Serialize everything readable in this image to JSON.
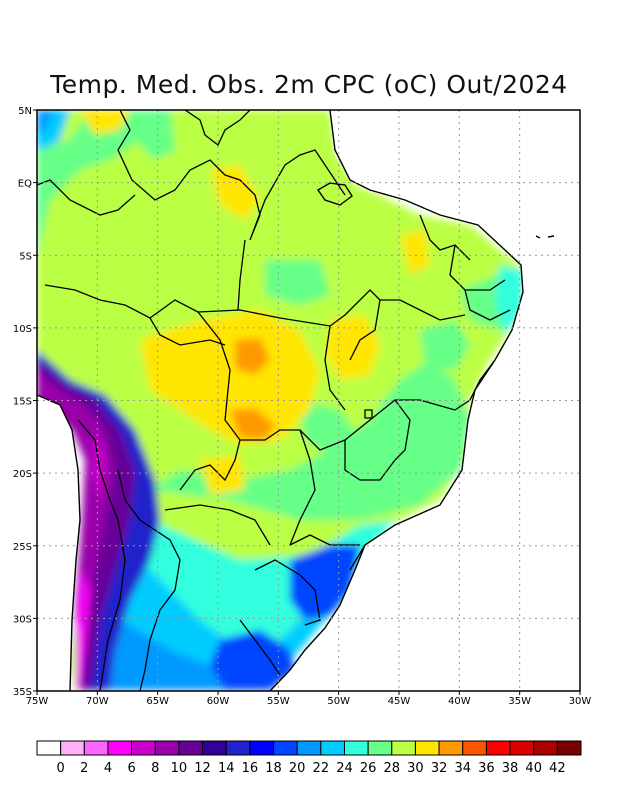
{
  "title": "Temp. Med. Obs. 2m CPC (oC) Out/2024",
  "map": {
    "lon_labels": [
      "75W",
      "70W",
      "65W",
      "60W",
      "55W",
      "50W",
      "45W",
      "40W",
      "35W",
      "30W"
    ],
    "lat_labels": [
      "5N",
      "EQ",
      "5S",
      "10S",
      "15S",
      "20S",
      "25S",
      "30S",
      "35S"
    ],
    "lon_range": [
      -75,
      -30
    ],
    "lat_range": [
      -35,
      5
    ]
  },
  "colorbar": {
    "labels": [
      "0",
      "2",
      "4",
      "6",
      "8",
      "10",
      "12",
      "14",
      "16",
      "18",
      "20",
      "22",
      "24",
      "26",
      "28",
      "30",
      "32",
      "34",
      "36",
      "38",
      "40",
      "42"
    ],
    "colors": [
      "#ffffff",
      "#ffb0f8",
      "#ff66ff",
      "#ff00ff",
      "#cc00cc",
      "#9900aa",
      "#660099",
      "#330099",
      "#2222cc",
      "#0000ff",
      "#0044ff",
      "#0099ff",
      "#00ccff",
      "#33ffdd",
      "#66ff88",
      "#bbff44",
      "#ffe600",
      "#ff9900",
      "#ff5500",
      "#ff0000",
      "#dd0000",
      "#aa0000",
      "#770000"
    ]
  }
}
